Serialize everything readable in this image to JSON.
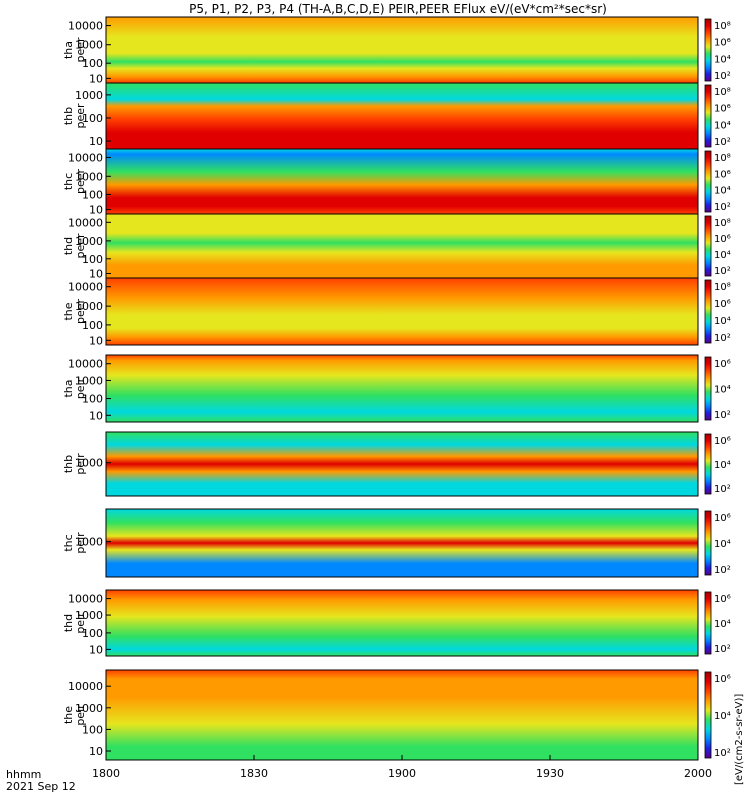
{
  "title": "P5, P1, P2, P3, P4 (TH-A,B,C,D,E) PEIR,PEER EFlux eV/(eV*cm²*sec*sr)",
  "footer": {
    "time_label": "hhmm",
    "date_label": "2021 Sep 12"
  },
  "colors": {
    "background": "#ffffff",
    "colormap": [
      "#5a008c",
      "#1f1fe0",
      "#0088ff",
      "#00d8e0",
      "#30e060",
      "#e6e61e",
      "#ff9a00",
      "#ff4000",
      "#e00000",
      "#a80000"
    ]
  },
  "chart_data": {
    "type": "heatmap",
    "title": "P5, P1, P2, P3, P4 (TH-A,B,C,D,E) PEIR,PEER EFlux eV/(eV*cm²*sec*sr)",
    "x_ticks": [
      "1800",
      "1830",
      "1900",
      "1930",
      "2000"
    ],
    "colorbar_label": "[eV/(cm2-s-sr-eV)]",
    "panels": [
      {
        "id": "tha-peer",
        "ylabel": [
          "tha",
          "peer"
        ],
        "yticks": [
          "10000",
          "1000",
          "100",
          "10"
        ],
        "cbar_ticks": [
          "10⁸",
          "10⁶",
          "10⁴",
          "10²"
        ]
      },
      {
        "id": "thb-peer",
        "ylabel": [
          "thb",
          "peer"
        ],
        "yticks": [
          "1000",
          "100",
          "10"
        ],
        "cbar_ticks": [
          "10⁸",
          "10⁶",
          "10⁴",
          "10²"
        ]
      },
      {
        "id": "thc-peer",
        "ylabel": [
          "thc",
          "peer"
        ],
        "yticks": [
          "10000",
          "1000",
          "100",
          "10"
        ],
        "cbar_ticks": [
          "10⁸",
          "10⁶",
          "10⁴",
          "10²"
        ]
      },
      {
        "id": "thd-peer",
        "ylabel": [
          "thd",
          "peer"
        ],
        "yticks": [
          "10000",
          "1000",
          "100",
          "10"
        ],
        "cbar_ticks": [
          "10⁸",
          "10⁶",
          "10⁴",
          "10²"
        ]
      },
      {
        "id": "the-peer",
        "ylabel": [
          "the",
          "peer"
        ],
        "yticks": [
          "10000",
          "1000",
          "100",
          "10"
        ],
        "cbar_ticks": [
          "10⁸",
          "10⁶",
          "10⁴",
          "10²"
        ]
      },
      {
        "id": "tha-peir",
        "ylabel": [
          "tha",
          "peir"
        ],
        "yticks": [
          "10000",
          "1000",
          "100",
          "10"
        ],
        "cbar_ticks": [
          "10⁶",
          "10⁴",
          "10²"
        ]
      },
      {
        "id": "thb-peir",
        "ylabel": [
          "thb",
          "peir"
        ],
        "yticks": [
          "1000"
        ],
        "cbar_ticks": [
          "10⁶",
          "10⁴",
          "10²"
        ]
      },
      {
        "id": "thc-peir",
        "ylabel": [
          "thc",
          "peir"
        ],
        "yticks": [
          "1000"
        ],
        "cbar_ticks": [
          "10⁶",
          "10⁴",
          "10²"
        ]
      },
      {
        "id": "thd-peir",
        "ylabel": [
          "thd",
          "peir"
        ],
        "yticks": [
          "10000",
          "1000",
          "100",
          "10"
        ],
        "cbar_ticks": [
          "10⁶",
          "10⁴",
          "10²"
        ]
      },
      {
        "id": "the-peir",
        "ylabel": [
          "the",
          "peir"
        ],
        "yticks": [
          "10000",
          "1000",
          "100",
          "10"
        ],
        "cbar_ticks": [
          "10⁶",
          "10⁴",
          "10²"
        ]
      }
    ]
  }
}
